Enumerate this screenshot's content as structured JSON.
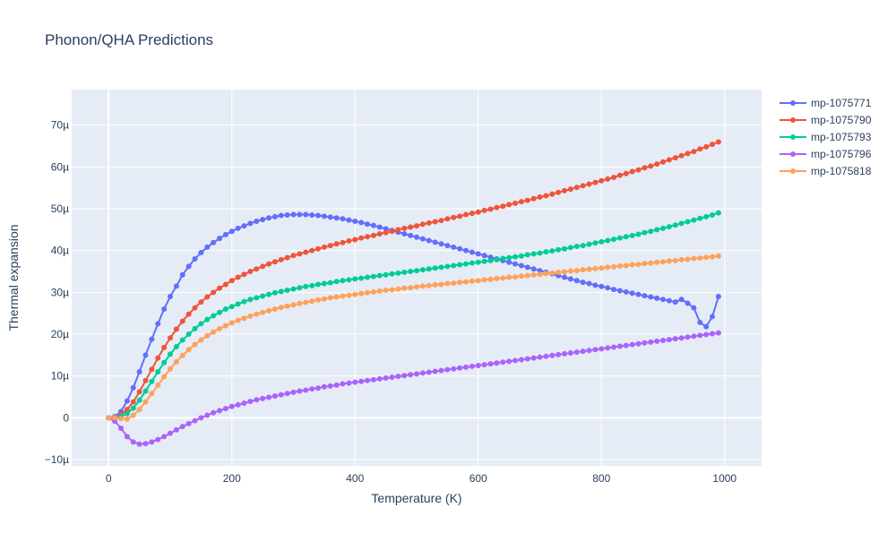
{
  "chart_data": {
    "type": "line",
    "title": "Phonon/QHA Predictions",
    "xlabel": "Temperature (K)",
    "ylabel": "Thermal expansion",
    "xlim": [
      -60,
      1060
    ],
    "ylim": [
      -1.15e-05,
      7.85e-05
    ],
    "x_ticks": [
      0,
      200,
      400,
      600,
      800,
      1000
    ],
    "x_tick_labels": [
      "0",
      "200",
      "400",
      "600",
      "800",
      "1000"
    ],
    "y_ticks": [
      -1e-05,
      0,
      1e-05,
      2e-05,
      3e-05,
      4e-05,
      5e-05,
      6e-05,
      7e-05
    ],
    "y_tick_labels": [
      "−10µ",
      "0",
      "10µ",
      "20µ",
      "30µ",
      "40µ",
      "50µ",
      "60µ",
      "70µ"
    ],
    "grid": true,
    "legend_position": "top-right",
    "x": [
      0,
      10,
      20,
      30,
      40,
      50,
      60,
      70,
      80,
      90,
      100,
      110,
      120,
      130,
      140,
      150,
      160,
      170,
      180,
      190,
      200,
      210,
      220,
      230,
      240,
      250,
      260,
      270,
      280,
      290,
      300,
      310,
      320,
      330,
      340,
      350,
      360,
      370,
      380,
      390,
      400,
      410,
      420,
      430,
      440,
      450,
      460,
      470,
      480,
      490,
      500,
      510,
      520,
      530,
      540,
      550,
      560,
      570,
      580,
      590,
      600,
      610,
      620,
      630,
      640,
      650,
      660,
      670,
      680,
      690,
      700,
      710,
      720,
      730,
      740,
      750,
      760,
      770,
      780,
      790,
      800,
      810,
      820,
      830,
      840,
      850,
      860,
      870,
      880,
      890,
      900,
      910,
      920,
      930,
      940,
      950,
      960,
      970,
      980,
      990
    ],
    "series": [
      {
        "name": "mp-1075771",
        "color": "#636efa",
        "values": [
          0,
          3e-07,
          1.5e-06,
          4e-06,
          7.2e-06,
          1.1e-05,
          1.5e-05,
          1.88e-05,
          2.25e-05,
          2.6e-05,
          2.9e-05,
          3.15e-05,
          3.42e-05,
          3.62e-05,
          3.8e-05,
          3.95e-05,
          4.08e-05,
          4.19e-05,
          4.29e-05,
          4.38e-05,
          4.46e-05,
          4.53e-05,
          4.59e-05,
          4.65e-05,
          4.7e-05,
          4.74e-05,
          4.78e-05,
          4.81e-05,
          4.84e-05,
          4.85e-05,
          4.86e-05,
          4.86e-05,
          4.86e-05,
          4.85e-05,
          4.84e-05,
          4.82e-05,
          4.8e-05,
          4.78e-05,
          4.76e-05,
          4.73e-05,
          4.7e-05,
          4.67e-05,
          4.63e-05,
          4.6e-05,
          4.56e-05,
          4.52e-05,
          4.48e-05,
          4.44e-05,
          4.4e-05,
          4.36e-05,
          4.32e-05,
          4.28e-05,
          4.24e-05,
          4.2e-05,
          4.16e-05,
          4.12e-05,
          4.08e-05,
          4.04e-05,
          4e-05,
          3.96e-05,
          3.92e-05,
          3.88e-05,
          3.84e-05,
          3.8e-05,
          3.76e-05,
          3.72e-05,
          3.68e-05,
          3.64e-05,
          3.6e-05,
          3.56e-05,
          3.52e-05,
          3.48e-05,
          3.44e-05,
          3.4e-05,
          3.36e-05,
          3.32e-05,
          3.28e-05,
          3.24e-05,
          3.21e-05,
          3.17e-05,
          3.14e-05,
          3.11e-05,
          3.07e-05,
          3.04e-05,
          3.01e-05,
          2.98e-05,
          2.95e-05,
          2.92e-05,
          2.89e-05,
          2.86e-05,
          2.83e-05,
          2.8e-05,
          2.77e-05,
          2.83e-05,
          2.74e-05,
          2.63e-05,
          2.28e-05,
          2.18e-05,
          2.42e-05,
          2.9e-05
        ]
      },
      {
        "name": "mp-1075790",
        "color": "#ef553b",
        "values": [
          0,
          2e-07,
          8e-07,
          2e-06,
          3.8e-06,
          6.2e-06,
          8.9e-06,
          1.16e-05,
          1.43e-05,
          1.68e-05,
          1.91e-05,
          2.12e-05,
          2.31e-05,
          2.48e-05,
          2.63e-05,
          2.77e-05,
          2.89e-05,
          3e-05,
          3.1e-05,
          3.19e-05,
          3.28e-05,
          3.36e-05,
          3.43e-05,
          3.5e-05,
          3.56e-05,
          3.62e-05,
          3.68e-05,
          3.73e-05,
          3.78e-05,
          3.83e-05,
          3.88e-05,
          3.92e-05,
          3.96e-05,
          4e-05,
          4.04e-05,
          4.08e-05,
          4.12e-05,
          4.16e-05,
          4.19e-05,
          4.23e-05,
          4.26e-05,
          4.3e-05,
          4.33e-05,
          4.36e-05,
          4.4e-05,
          4.43e-05,
          4.46e-05,
          4.5e-05,
          4.53e-05,
          4.56e-05,
          4.59e-05,
          4.63e-05,
          4.66e-05,
          4.69e-05,
          4.72e-05,
          4.76e-05,
          4.79e-05,
          4.82e-05,
          4.86e-05,
          4.89e-05,
          4.92e-05,
          4.96e-05,
          4.99e-05,
          5.03e-05,
          5.06e-05,
          5.1e-05,
          5.13e-05,
          5.17e-05,
          5.2e-05,
          5.24e-05,
          5.28e-05,
          5.31e-05,
          5.35e-05,
          5.39e-05,
          5.43e-05,
          5.47e-05,
          5.51e-05,
          5.55e-05,
          5.59e-05,
          5.63e-05,
          5.67e-05,
          5.71e-05,
          5.75e-05,
          5.8e-05,
          5.84e-05,
          5.89e-05,
          5.93e-05,
          5.98e-05,
          6.02e-05,
          6.07e-05,
          6.12e-05,
          6.17e-05,
          6.22e-05,
          6.27e-05,
          6.32e-05,
          6.37e-05,
          6.43e-05,
          6.48e-05,
          6.54e-05,
          6.6e-05
        ]
      },
      {
        "name": "mp-1075793",
        "color": "#00cc96",
        "values": [
          0,
          1e-07,
          3e-07,
          1e-06,
          2.3e-06,
          4.2e-06,
          6.4e-06,
          8.7e-06,
          1.1e-05,
          1.32e-05,
          1.52e-05,
          1.7e-05,
          1.86e-05,
          2e-05,
          2.13e-05,
          2.25e-05,
          2.35e-05,
          2.44e-05,
          2.52e-05,
          2.6e-05,
          2.66e-05,
          2.72e-05,
          2.78e-05,
          2.83e-05,
          2.87e-05,
          2.91e-05,
          2.95e-05,
          2.99e-05,
          3.02e-05,
          3.05e-05,
          3.08e-05,
          3.11e-05,
          3.14e-05,
          3.16e-05,
          3.19e-05,
          3.21e-05,
          3.23e-05,
          3.26e-05,
          3.28e-05,
          3.3e-05,
          3.32e-05,
          3.34e-05,
          3.36e-05,
          3.38e-05,
          3.4e-05,
          3.42e-05,
          3.44e-05,
          3.46e-05,
          3.48e-05,
          3.5e-05,
          3.52e-05,
          3.54e-05,
          3.56e-05,
          3.58e-05,
          3.6e-05,
          3.62e-05,
          3.64e-05,
          3.66e-05,
          3.68e-05,
          3.7e-05,
          3.72e-05,
          3.74e-05,
          3.76e-05,
          3.78e-05,
          3.81e-05,
          3.83e-05,
          3.85e-05,
          3.87e-05,
          3.9e-05,
          3.92e-05,
          3.94e-05,
          3.97e-05,
          3.99e-05,
          4.02e-05,
          4.04e-05,
          4.07e-05,
          4.1e-05,
          4.12e-05,
          4.15e-05,
          4.18e-05,
          4.21e-05,
          4.24e-05,
          4.27e-05,
          4.3e-05,
          4.33e-05,
          4.36e-05,
          4.39e-05,
          4.43e-05,
          4.46e-05,
          4.5e-05,
          4.53e-05,
          4.57e-05,
          4.61e-05,
          4.65e-05,
          4.69e-05,
          4.73e-05,
          4.77e-05,
          4.81e-05,
          4.85e-05,
          4.9e-05
        ]
      },
      {
        "name": "mp-1075796",
        "color": "#ab63fa",
        "values": [
          0,
          -8e-07,
          -2.5e-06,
          -4.5e-06,
          -5.8e-06,
          -6.3e-06,
          -6.2e-06,
          -5.8e-06,
          -5.2e-06,
          -4.5e-06,
          -3.7e-06,
          -2.9e-06,
          -2.1e-06,
          -1.4e-06,
          -7e-07,
          0,
          6e-07,
          1.2e-06,
          1.7e-06,
          2.2e-06,
          2.7e-06,
          3.1e-06,
          3.5e-06,
          3.9e-06,
          4.3e-06,
          4.6e-06,
          4.9e-06,
          5.2e-06,
          5.5e-06,
          5.8e-06,
          6.1e-06,
          6.4e-06,
          6.6e-06,
          6.9e-06,
          7.1e-06,
          7.4e-06,
          7.6e-06,
          7.8e-06,
          8.1e-06,
          8.3e-06,
          8.5e-06,
          8.7e-06,
          8.9e-06,
          9.1e-06,
          9.3e-06,
          9.5e-06,
          9.7e-06,
          9.9e-06,
          1.01e-05,
          1.03e-05,
          1.05e-05,
          1.07e-05,
          1.09e-05,
          1.11e-05,
          1.13e-05,
          1.15e-05,
          1.17e-05,
          1.19e-05,
          1.21e-05,
          1.23e-05,
          1.25e-05,
          1.27e-05,
          1.29e-05,
          1.31e-05,
          1.33e-05,
          1.35e-05,
          1.37e-05,
          1.39e-05,
          1.41e-05,
          1.43e-05,
          1.45e-05,
          1.47e-05,
          1.49e-05,
          1.51e-05,
          1.53e-05,
          1.55e-05,
          1.57e-05,
          1.59e-05,
          1.61e-05,
          1.63e-05,
          1.65e-05,
          1.67e-05,
          1.69e-05,
          1.71e-05,
          1.73e-05,
          1.75e-05,
          1.77e-05,
          1.79e-05,
          1.81e-05,
          1.83e-05,
          1.85e-05,
          1.87e-05,
          1.89e-05,
          1.91e-05,
          1.93e-05,
          1.95e-05,
          1.97e-05,
          1.99e-05,
          2.01e-05,
          2.03e-05
        ]
      },
      {
        "name": "mp-1075818",
        "color": "#ffa15a",
        "values": [
          0,
          0,
          -2e-07,
          -3e-07,
          6e-07,
          2e-06,
          3.8e-06,
          5.8e-06,
          7.8e-06,
          9.8e-06,
          1.17e-05,
          1.34e-05,
          1.49e-05,
          1.63e-05,
          1.75e-05,
          1.86e-05,
          1.96e-05,
          2.05e-05,
          2.13e-05,
          2.2e-05,
          2.27e-05,
          2.33e-05,
          2.38e-05,
          2.43e-05,
          2.48e-05,
          2.52e-05,
          2.56e-05,
          2.6e-05,
          2.64e-05,
          2.67e-05,
          2.7e-05,
          2.73e-05,
          2.76e-05,
          2.79e-05,
          2.82e-05,
          2.84e-05,
          2.87e-05,
          2.89e-05,
          2.91e-05,
          2.93e-05,
          2.95e-05,
          2.97e-05,
          2.99e-05,
          3.01e-05,
          3.03e-05,
          3.05e-05,
          3.06e-05,
          3.08e-05,
          3.1e-05,
          3.11e-05,
          3.13e-05,
          3.15e-05,
          3.16e-05,
          3.18e-05,
          3.19e-05,
          3.21e-05,
          3.22e-05,
          3.24e-05,
          3.25e-05,
          3.27e-05,
          3.28e-05,
          3.3e-05,
          3.31e-05,
          3.33e-05,
          3.34e-05,
          3.36e-05,
          3.37e-05,
          3.39e-05,
          3.4e-05,
          3.42e-05,
          3.43e-05,
          3.45e-05,
          3.46e-05,
          3.48e-05,
          3.49e-05,
          3.51e-05,
          3.52e-05,
          3.54e-05,
          3.55e-05,
          3.57e-05,
          3.58e-05,
          3.6e-05,
          3.61e-05,
          3.63e-05,
          3.64e-05,
          3.66e-05,
          3.67e-05,
          3.69e-05,
          3.7e-05,
          3.72e-05,
          3.73e-05,
          3.75e-05,
          3.76e-05,
          3.78e-05,
          3.79e-05,
          3.81e-05,
          3.82e-05,
          3.84e-05,
          3.85e-05,
          3.87e-05
        ]
      }
    ]
  }
}
